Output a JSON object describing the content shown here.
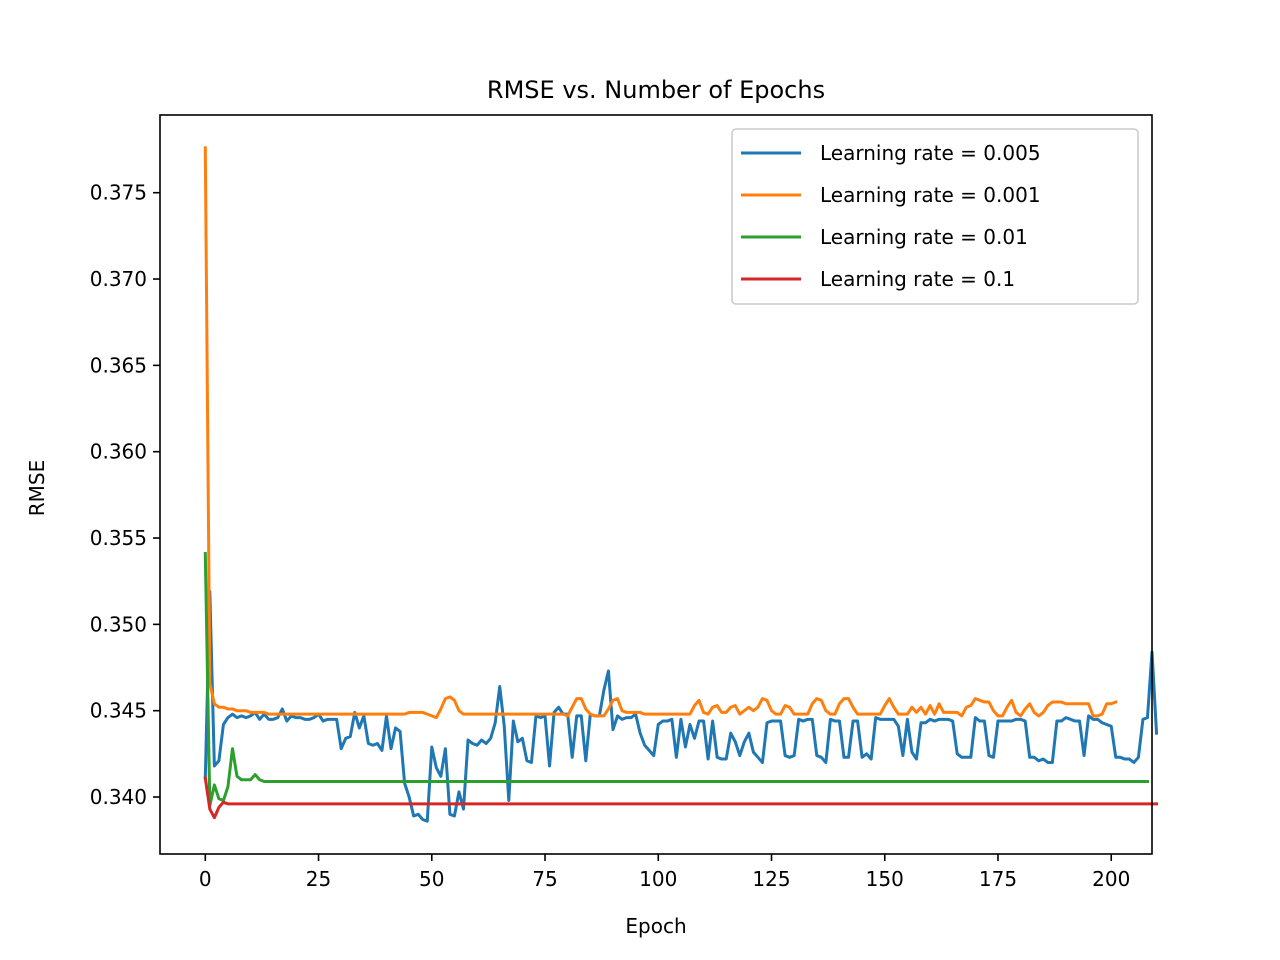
{
  "chart_data": {
    "type": "line",
    "title": "RMSE vs. Number of Epochs",
    "xlabel": "Epoch",
    "ylabel": "RMSE",
    "xlim": [
      -10,
      209
    ],
    "ylim": [
      0.3367,
      0.3795
    ],
    "xticks": [
      0,
      25,
      50,
      75,
      100,
      125,
      150,
      175,
      200
    ],
    "xtick_labels": [
      "0",
      "25",
      "50",
      "75",
      "100",
      "125",
      "150",
      "175",
      "200"
    ],
    "yticks": [
      0.34,
      0.345,
      0.35,
      0.355,
      0.36,
      0.365,
      0.37,
      0.375
    ],
    "ytick_labels": [
      "0.340",
      "0.345",
      "0.350",
      "0.355",
      "0.360",
      "0.365",
      "0.370",
      "0.375"
    ],
    "grid": false,
    "legend_position": "top-right",
    "series": [
      {
        "name": "Learning rate = 0.005",
        "color": "#1f77b4",
        "values": [
          0.3411,
          0.3519,
          0.3418,
          0.3421,
          0.3442,
          0.3446,
          0.3448,
          0.3446,
          0.3447,
          0.3446,
          0.3447,
          0.3449,
          0.3445,
          0.3448,
          0.3445,
          0.3445,
          0.3446,
          0.3451,
          0.3444,
          0.3447,
          0.3446,
          0.3446,
          0.3445,
          0.3445,
          0.3446,
          0.3448,
          0.3444,
          0.3445,
          0.3445,
          0.3445,
          0.3428,
          0.3434,
          0.3435,
          0.3449,
          0.344,
          0.3447,
          0.3431,
          0.343,
          0.3431,
          0.3427,
          0.3447,
          0.3428,
          0.344,
          0.3438,
          0.3408,
          0.34,
          0.3389,
          0.339,
          0.3387,
          0.3386,
          0.3429,
          0.3417,
          0.3412,
          0.3428,
          0.339,
          0.3389,
          0.3403,
          0.3393,
          0.3433,
          0.3431,
          0.343,
          0.3433,
          0.3431,
          0.3434,
          0.3443,
          0.3464,
          0.3441,
          0.3398,
          0.3444,
          0.3432,
          0.3434,
          0.3421,
          0.342,
          0.3447,
          0.3446,
          0.3447,
          0.3418,
          0.3449,
          0.3452,
          0.3448,
          0.3448,
          0.3423,
          0.3447,
          0.3447,
          0.3421,
          0.3448,
          0.3447,
          0.3447,
          0.3462,
          0.3473,
          0.3439,
          0.3447,
          0.3445,
          0.3446,
          0.3446,
          0.3448,
          0.3437,
          0.343,
          0.3427,
          0.3424,
          0.3442,
          0.3444,
          0.3444,
          0.3445,
          0.3423,
          0.3445,
          0.3429,
          0.3442,
          0.3434,
          0.3444,
          0.3444,
          0.3422,
          0.3444,
          0.3423,
          0.3422,
          0.3422,
          0.3437,
          0.3432,
          0.3424,
          0.3432,
          0.3437,
          0.3426,
          0.3423,
          0.342,
          0.3443,
          0.3444,
          0.3444,
          0.3444,
          0.3424,
          0.3423,
          0.3424,
          0.3445,
          0.3444,
          0.3445,
          0.3445,
          0.3424,
          0.3423,
          0.342,
          0.3445,
          0.3444,
          0.3444,
          0.3423,
          0.3423,
          0.3444,
          0.3444,
          0.3423,
          0.3425,
          0.3422,
          0.3446,
          0.3445,
          0.3445,
          0.3445,
          0.3445,
          0.3441,
          0.3424,
          0.3445,
          0.3426,
          0.3422,
          0.3443,
          0.3443,
          0.3445,
          0.3444,
          0.3445,
          0.3445,
          0.3445,
          0.3444,
          0.3425,
          0.3423,
          0.3423,
          0.3423,
          0.3446,
          0.3444,
          0.3444,
          0.3424,
          0.3423,
          0.3444,
          0.3444,
          0.3444,
          0.3444,
          0.3445,
          0.3445,
          0.3444,
          0.3423,
          0.3423,
          0.3421,
          0.3422,
          0.342,
          0.342,
          0.3444,
          0.3444,
          0.3446,
          0.3445,
          0.3444,
          0.3444,
          0.3424,
          0.3447,
          0.3445,
          0.3445,
          0.3443,
          0.3442,
          0.3441,
          0.3423,
          0.3423,
          0.3422,
          0.3422,
          0.342,
          0.3423,
          0.3445,
          0.3446,
          0.3484,
          0.3437
        ]
      },
      {
        "name": "Learning rate = 0.001",
        "color": "#ff7f0e",
        "values": [
          0.3776,
          0.3466,
          0.3454,
          0.3452,
          0.3452,
          0.3451,
          0.3451,
          0.345,
          0.345,
          0.345,
          0.3449,
          0.3449,
          0.3449,
          0.3449,
          0.3448,
          0.3448,
          0.3448,
          0.3448,
          0.3448,
          0.3448,
          0.3448,
          0.3448,
          0.3448,
          0.3448,
          0.3448,
          0.3448,
          0.3448,
          0.3448,
          0.3448,
          0.3448,
          0.3448,
          0.3448,
          0.3448,
          0.3448,
          0.3448,
          0.3448,
          0.3448,
          0.3448,
          0.3448,
          0.3448,
          0.3448,
          0.3448,
          0.3448,
          0.3448,
          0.3448,
          0.3449,
          0.3449,
          0.3449,
          0.3449,
          0.3448,
          0.3447,
          0.3446,
          0.3451,
          0.3457,
          0.3458,
          0.3456,
          0.345,
          0.3448,
          0.3448,
          0.3448,
          0.3448,
          0.3448,
          0.3448,
          0.3448,
          0.3448,
          0.3448,
          0.3448,
          0.3448,
          0.3448,
          0.3448,
          0.3448,
          0.3448,
          0.3448,
          0.3448,
          0.3448,
          0.3448,
          0.3448,
          0.3448,
          0.3448,
          0.3448,
          0.3447,
          0.3452,
          0.3457,
          0.3457,
          0.3451,
          0.3448,
          0.3447,
          0.3447,
          0.3447,
          0.3451,
          0.3456,
          0.3457,
          0.345,
          0.3449,
          0.3449,
          0.3449,
          0.3449,
          0.3448,
          0.3448,
          0.3448,
          0.3448,
          0.3448,
          0.3448,
          0.3448,
          0.3448,
          0.3448,
          0.3448,
          0.3448,
          0.3453,
          0.3456,
          0.3449,
          0.3448,
          0.3452,
          0.3453,
          0.3449,
          0.3449,
          0.3452,
          0.3453,
          0.3448,
          0.345,
          0.3452,
          0.345,
          0.3452,
          0.3457,
          0.3456,
          0.345,
          0.3448,
          0.3448,
          0.3453,
          0.3452,
          0.3448,
          0.3448,
          0.3448,
          0.3448,
          0.3454,
          0.3457,
          0.3456,
          0.345,
          0.3448,
          0.3448,
          0.3454,
          0.3457,
          0.3457,
          0.3452,
          0.3448,
          0.3448,
          0.3448,
          0.3448,
          0.3448,
          0.3448,
          0.3453,
          0.3457,
          0.3452,
          0.3448,
          0.3448,
          0.3448,
          0.3452,
          0.3449,
          0.3452,
          0.3448,
          0.3453,
          0.3448,
          0.3454,
          0.3449,
          0.3449,
          0.3449,
          0.3449,
          0.3447,
          0.3452,
          0.3453,
          0.3457,
          0.3456,
          0.3455,
          0.3455,
          0.345,
          0.3447,
          0.3447,
          0.3452,
          0.3456,
          0.3449,
          0.3447,
          0.3451,
          0.3454,
          0.3449,
          0.3447,
          0.3449,
          0.3453,
          0.3455,
          0.3455,
          0.3455,
          0.3454,
          0.3454,
          0.3454,
          0.3454,
          0.3454,
          0.3454,
          0.3447,
          0.3447,
          0.3448,
          0.3454,
          0.3454,
          0.3455
        ]
      },
      {
        "name": "Learning rate = 0.01",
        "color": "#2ca02c",
        "values": [
          0.3541,
          0.3395,
          0.3407,
          0.3399,
          0.3398,
          0.3406,
          0.3428,
          0.3412,
          0.341,
          0.341,
          0.341,
          0.3413,
          0.341,
          0.3409,
          0.3409,
          0.3409,
          0.3409,
          0.3409,
          0.3409,
          0.3409,
          0.3409,
          0.3409,
          0.3409,
          0.3409,
          0.3409,
          0.3409,
          0.3409,
          0.3409,
          0.3409,
          0.3409,
          0.3409,
          0.3409,
          0.3409,
          0.3409,
          0.3409,
          0.3409,
          0.3409,
          0.3409,
          0.3409,
          0.3409,
          0.3409,
          0.3409,
          0.3409,
          0.3409,
          0.3409,
          0.3409,
          0.3409,
          0.3409,
          0.3409,
          0.3409,
          0.3409,
          0.3409,
          0.3409,
          0.3409,
          0.3409,
          0.3409,
          0.3409,
          0.3409,
          0.3409,
          0.3409,
          0.3409,
          0.3409,
          0.3409,
          0.3409,
          0.3409,
          0.3409,
          0.3409,
          0.3409,
          0.3409,
          0.3409,
          0.3409,
          0.3409,
          0.3409,
          0.3409,
          0.3409,
          0.3409,
          0.3409,
          0.3409,
          0.3409,
          0.3409,
          0.3409,
          0.3409,
          0.3409,
          0.3409,
          0.3409,
          0.3409,
          0.3409,
          0.3409,
          0.3409,
          0.3409,
          0.3409,
          0.3409,
          0.3409,
          0.3409,
          0.3409,
          0.3409,
          0.3409,
          0.3409,
          0.3409,
          0.3409,
          0.3409,
          0.3409,
          0.3409,
          0.3409,
          0.3409,
          0.3409,
          0.3409,
          0.3409,
          0.3409,
          0.3409,
          0.3409,
          0.3409,
          0.3409,
          0.3409,
          0.3409,
          0.3409,
          0.3409,
          0.3409,
          0.3409,
          0.3409,
          0.3409,
          0.3409,
          0.3409,
          0.3409,
          0.3409,
          0.3409,
          0.3409,
          0.3409,
          0.3409,
          0.3409,
          0.3409,
          0.3409,
          0.3409,
          0.3409,
          0.3409,
          0.3409,
          0.3409,
          0.3409,
          0.3409,
          0.3409,
          0.3409,
          0.3409,
          0.3409,
          0.3409,
          0.3409,
          0.3409,
          0.3409,
          0.3409,
          0.3409,
          0.3409,
          0.3409,
          0.3409,
          0.3409,
          0.3409,
          0.3409,
          0.3409,
          0.3409,
          0.3409,
          0.3409,
          0.3409,
          0.3409,
          0.3409,
          0.3409,
          0.3409,
          0.3409,
          0.3409,
          0.3409,
          0.3409,
          0.3409,
          0.3409,
          0.3409,
          0.3409,
          0.3409,
          0.3409,
          0.3409,
          0.3409,
          0.3409,
          0.3409,
          0.3409,
          0.3409,
          0.3409,
          0.3409,
          0.3409,
          0.3409,
          0.3409,
          0.3409,
          0.3409,
          0.3409,
          0.3409,
          0.3409,
          0.3409,
          0.3409,
          0.3409,
          0.3409,
          0.3409,
          0.3409,
          0.3409,
          0.3409,
          0.3409,
          0.3409,
          0.3409,
          0.3409,
          0.3409,
          0.3409,
          0.3409,
          0.3409,
          0.3409,
          0.3409,
          0.3409
        ]
      },
      {
        "name": "Learning rate = 0.1",
        "color": "#d62728",
        "values": [
          0.3411,
          0.3393,
          0.3388,
          0.3394,
          0.3397,
          0.3396,
          0.3396,
          0.3396,
          0.3396,
          0.3396,
          0.3396,
          0.3396,
          0.3396,
          0.3396,
          0.3396,
          0.3396,
          0.3396,
          0.3396,
          0.3396,
          0.3396,
          0.3396,
          0.3396,
          0.3396,
          0.3396,
          0.3396,
          0.3396,
          0.3396,
          0.3396,
          0.3396,
          0.3396,
          0.3396,
          0.3396,
          0.3396,
          0.3396,
          0.3396,
          0.3396,
          0.3396,
          0.3396,
          0.3396,
          0.3396,
          0.3396,
          0.3396,
          0.3396,
          0.3396,
          0.3396,
          0.3396,
          0.3396,
          0.3396,
          0.3396,
          0.3396,
          0.3396,
          0.3396,
          0.3396,
          0.3396,
          0.3396,
          0.3396,
          0.3396,
          0.3396,
          0.3396,
          0.3396,
          0.3396,
          0.3396,
          0.3396,
          0.3396,
          0.3396,
          0.3396,
          0.3396,
          0.3396,
          0.3396,
          0.3396,
          0.3396,
          0.3396,
          0.3396,
          0.3396,
          0.3396,
          0.3396,
          0.3396,
          0.3396,
          0.3396,
          0.3396,
          0.3396,
          0.3396,
          0.3396,
          0.3396,
          0.3396,
          0.3396,
          0.3396,
          0.3396,
          0.3396,
          0.3396,
          0.3396,
          0.3396,
          0.3396,
          0.3396,
          0.3396,
          0.3396,
          0.3396,
          0.3396,
          0.3396,
          0.3396,
          0.3396,
          0.3396,
          0.3396,
          0.3396,
          0.3396,
          0.3396,
          0.3396,
          0.3396,
          0.3396,
          0.3396,
          0.3396,
          0.3396,
          0.3396,
          0.3396,
          0.3396,
          0.3396,
          0.3396,
          0.3396,
          0.3396,
          0.3396,
          0.3396,
          0.3396,
          0.3396,
          0.3396,
          0.3396,
          0.3396,
          0.3396,
          0.3396,
          0.3396,
          0.3396,
          0.3396,
          0.3396,
          0.3396,
          0.3396,
          0.3396,
          0.3396,
          0.3396,
          0.3396,
          0.3396,
          0.3396,
          0.3396,
          0.3396,
          0.3396,
          0.3396,
          0.3396,
          0.3396,
          0.3396,
          0.3396,
          0.3396,
          0.3396,
          0.3396,
          0.3396,
          0.3396,
          0.3396,
          0.3396,
          0.3396,
          0.3396,
          0.3396,
          0.3396,
          0.3396,
          0.3396,
          0.3396,
          0.3396,
          0.3396,
          0.3396,
          0.3396,
          0.3396,
          0.3396,
          0.3396,
          0.3396,
          0.3396,
          0.3396,
          0.3396,
          0.3396,
          0.3396,
          0.3396,
          0.3396,
          0.3396,
          0.3396,
          0.3396,
          0.3396,
          0.3396,
          0.3396,
          0.3396,
          0.3396,
          0.3396,
          0.3396,
          0.3396,
          0.3396,
          0.3396,
          0.3396,
          0.3396,
          0.3396,
          0.3396,
          0.3396,
          0.3396,
          0.3396,
          0.3396,
          0.3396,
          0.3396,
          0.3396,
          0.3396,
          0.3396,
          0.3396,
          0.3396,
          0.3396,
          0.3396,
          0.3396,
          0.3396,
          0.3396,
          0.3396
        ]
      }
    ]
  }
}
